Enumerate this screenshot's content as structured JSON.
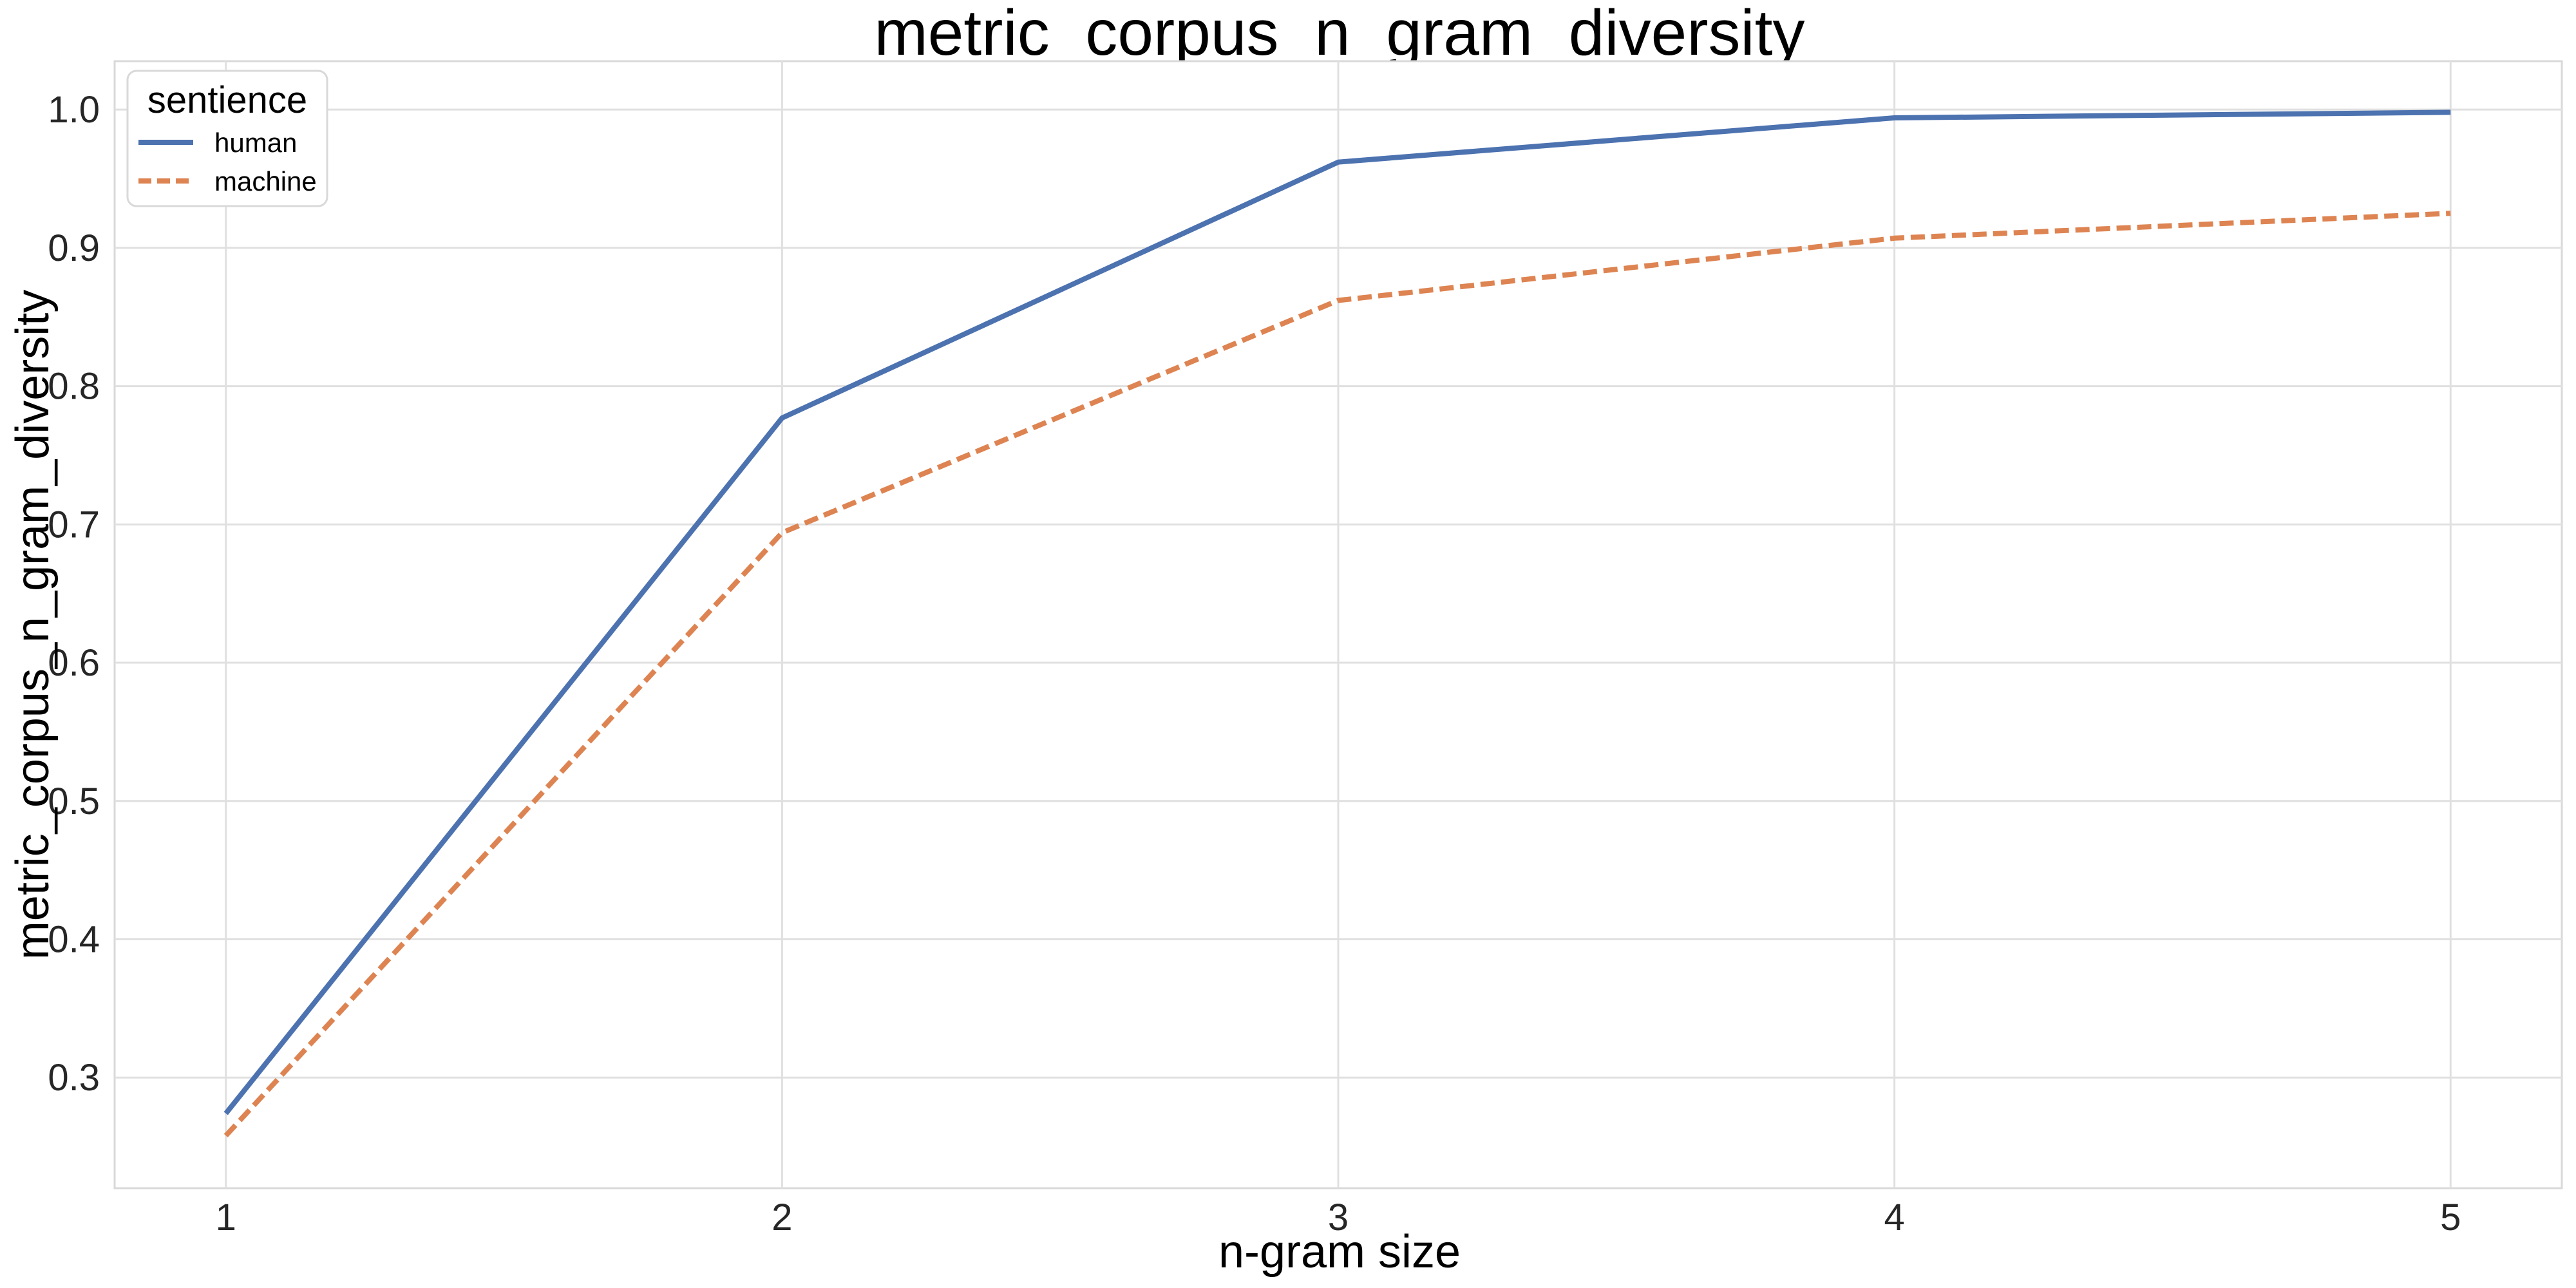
{
  "chart_data": {
    "type": "line",
    "title": "metric_corpus_n_gram_diversity",
    "xlabel": "n-gram size",
    "ylabel": "metric_corpus_n_gram_diversity",
    "x": [
      1,
      2,
      3,
      4,
      5
    ],
    "x_ticks": [
      "1",
      "2",
      "3",
      "4",
      "5"
    ],
    "y_ticks": [
      "0.3",
      "0.4",
      "0.5",
      "0.6",
      "0.7",
      "0.8",
      "0.9",
      "1.0"
    ],
    "xlim": [
      0.8,
      5.2
    ],
    "ylim": [
      0.22,
      1.035
    ],
    "grid": true,
    "legend": {
      "title": "sentience",
      "placement": "top-left"
    },
    "series": [
      {
        "name": "human",
        "values": [
          0.274,
          0.777,
          0.962,
          0.994,
          0.998
        ],
        "color": "#4c72b0",
        "dash": "solid"
      },
      {
        "name": "machine",
        "values": [
          0.258,
          0.694,
          0.862,
          0.907,
          0.925
        ],
        "color": "#dd8452",
        "dash": "dashed"
      }
    ]
  }
}
